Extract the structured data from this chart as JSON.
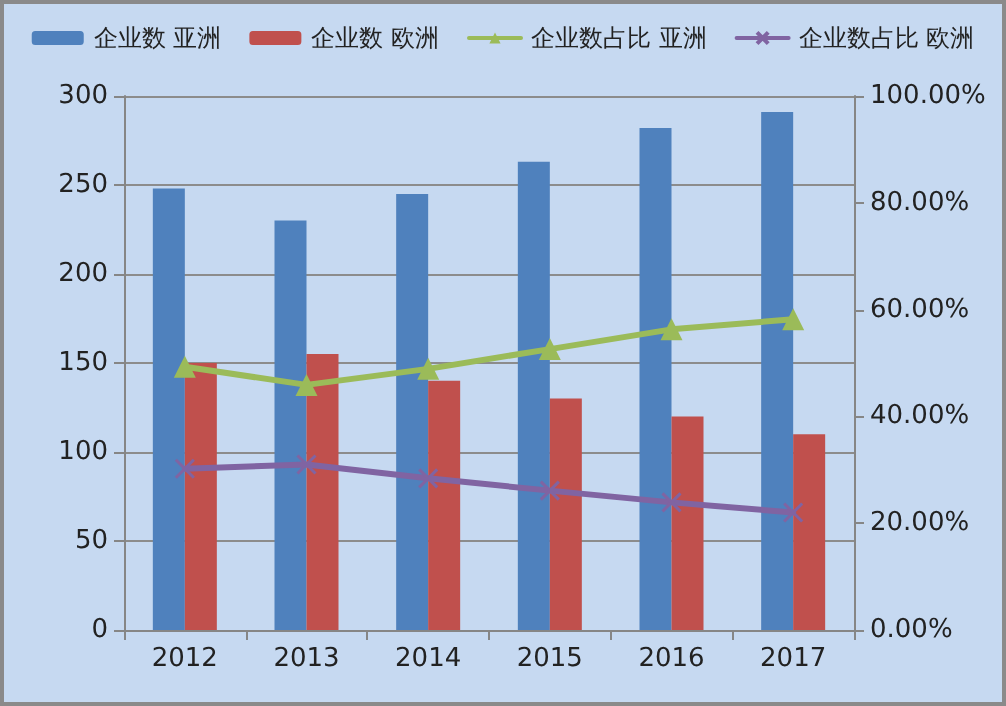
{
  "chart_data": {
    "type": "bar",
    "categories": [
      "2012",
      "2013",
      "2014",
      "2015",
      "2016",
      "2017"
    ],
    "series": [
      {
        "name": "企业数 亚洲",
        "color": "#4f81bd",
        "values": [
          248,
          230,
          245,
          263,
          282,
          291
        ]
      },
      {
        "name": "企业数 欧洲",
        "color": "#c0504d",
        "values": [
          150,
          155,
          140,
          130,
          120,
          110
        ]
      },
      {
        "name": "企业数占比 亚洲",
        "type": "line",
        "axis": "y2",
        "marker": "triangle",
        "color": "#9bbb59",
        "values": [
          49.3,
          45.9,
          48.9,
          52.6,
          56.3,
          58.2
        ]
      },
      {
        "name": "企业数占比 欧洲",
        "type": "line",
        "axis": "y2",
        "marker": "cross",
        "color": "#8064a2",
        "values": [
          30.2,
          31.0,
          28.4,
          26.1,
          23.9,
          22.0
        ]
      }
    ],
    "ylim": [
      0,
      300
    ],
    "yticks": [
      0,
      50,
      100,
      150,
      200,
      250,
      300
    ],
    "y2lim": [
      0,
      100
    ],
    "y2ticks": [
      {
        "value": 0,
        "label": "0.00%"
      },
      {
        "value": 20,
        "label": "20.00%"
      },
      {
        "value": 40,
        "label": "40.00%"
      },
      {
        "value": 60,
        "label": "60.00%"
      },
      {
        "value": 80,
        "label": "80.00%"
      },
      {
        "value": 100,
        "label": "100.00%"
      }
    ],
    "grid": "y",
    "legend": "top",
    "line_style": "solid"
  }
}
